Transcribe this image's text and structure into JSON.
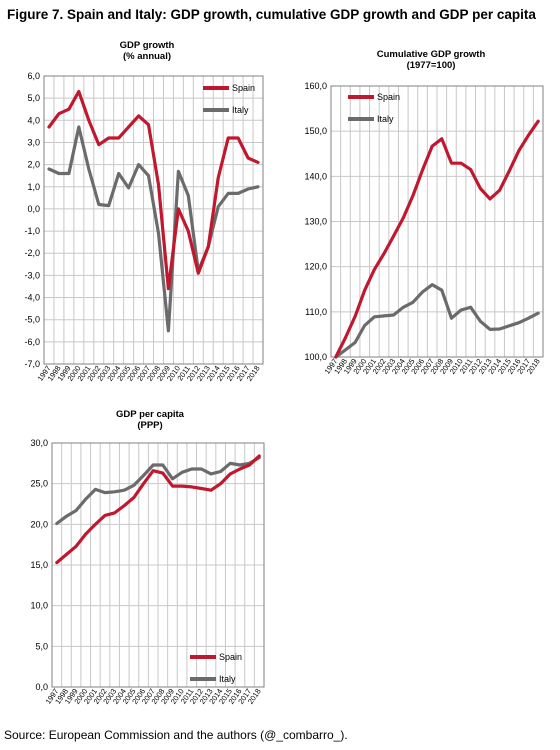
{
  "figure_title": "Figure 7. Spain and Italy: GDP growth, cumulative GDP growth and GDP per capita",
  "source": "Source: European Commission and the authors (@_combarro_).",
  "colors": {
    "spain": "#c0182f",
    "italy": "#6b6b6b"
  },
  "chart_data": [
    {
      "type": "line",
      "title": "GDP growth",
      "subtitle": "(% annual)",
      "categories": [
        "1997",
        "1998",
        "1999",
        "2000",
        "2001",
        "2002",
        "2003",
        "2004",
        "2005",
        "2006",
        "2007",
        "2008",
        "2009",
        "2010",
        "2011",
        "2012",
        "2013",
        "2014",
        "2015",
        "2016",
        "2017",
        "2018"
      ],
      "yticks": [
        "6,0",
        "5,0",
        "4,0",
        "3,0",
        "2,0",
        "1,0",
        "0,0",
        "-1,0",
        "-2,0",
        "-3,0",
        "-4,0",
        "-5,0",
        "-6,0",
        "-7,0"
      ],
      "ylim": [
        -7,
        6
      ],
      "grid": true,
      "legend_position": "top-right",
      "series": [
        {
          "name": "Spain",
          "color": "#c0182f",
          "values": [
            3.7,
            4.3,
            4.5,
            5.3,
            4.0,
            2.9,
            3.2,
            3.2,
            3.7,
            4.2,
            3.8,
            1.1,
            -3.6,
            0.0,
            -1.0,
            -2.9,
            -1.7,
            1.4,
            3.2,
            3.2,
            2.3,
            2.1
          ]
        },
        {
          "name": "Italy",
          "color": "#6b6b6b",
          "values": [
            1.8,
            1.6,
            1.6,
            3.7,
            1.8,
            0.2,
            0.15,
            1.6,
            0.95,
            2.0,
            1.5,
            -1.1,
            -5.5,
            1.7,
            0.6,
            -2.8,
            -1.7,
            0.1,
            0.7,
            0.7,
            0.9,
            1.0
          ]
        }
      ]
    },
    {
      "type": "line",
      "title": "Cumulative GDP growth",
      "subtitle": "(1977=100)",
      "categories": [
        "1997",
        "1998",
        "1999",
        "2000",
        "2001",
        "2002",
        "2003",
        "2004",
        "2005",
        "2006",
        "2007",
        "2008",
        "2009",
        "2010",
        "2011",
        "2012",
        "2013",
        "2014",
        "2015",
        "2016",
        "2017",
        "2018"
      ],
      "yticks": [
        "160,0",
        "150,0",
        "140,0",
        "130,0",
        "120,0",
        "110,0",
        "100,0"
      ],
      "ylim": [
        100,
        160
      ],
      "grid": true,
      "legend_position": "top-left",
      "series": [
        {
          "name": "Spain",
          "color": "#c0182f",
          "values": [
            100.0,
            104.3,
            109.0,
            114.8,
            119.4,
            122.9,
            126.8,
            130.8,
            135.7,
            141.4,
            146.7,
            148.3,
            142.9,
            142.9,
            141.5,
            137.3,
            135.0,
            136.9,
            141.2,
            145.7,
            149.1,
            152.2
          ]
        },
        {
          "name": "Italy",
          "color": "#6b6b6b",
          "values": [
            100.0,
            101.6,
            103.2,
            107.0,
            108.9,
            109.1,
            109.3,
            111.0,
            112.1,
            114.4,
            116.0,
            114.8,
            108.6,
            110.4,
            111.0,
            107.9,
            106.1,
            106.2,
            106.9,
            107.6,
            108.6,
            109.7
          ]
        }
      ]
    },
    {
      "type": "line",
      "title": "GDP per capita",
      "subtitle": "(PPP)",
      "categories": [
        "1997",
        "1998",
        "1999",
        "2000",
        "2001",
        "2002",
        "2003",
        "2004",
        "2005",
        "2006",
        "2007",
        "2008",
        "2009",
        "2010",
        "2011",
        "2012",
        "2013",
        "2014",
        "2015",
        "2016",
        "2017",
        "2018"
      ],
      "yticks": [
        "30,0",
        "25,0",
        "20,0",
        "15,0",
        "10,0",
        "5,0",
        "0,0"
      ],
      "ylim": [
        0,
        30
      ],
      "grid": true,
      "legend_position": "bottom-right",
      "series": [
        {
          "name": "Spain",
          "color": "#c0182f",
          "values": [
            15.3,
            16.3,
            17.3,
            18.8,
            20.0,
            21.1,
            21.4,
            22.3,
            23.3,
            25.0,
            26.6,
            26.3,
            24.7,
            24.7,
            24.6,
            24.4,
            24.2,
            25.0,
            26.2,
            26.8,
            27.3,
            28.4
          ]
        },
        {
          "name": "Italy",
          "color": "#6b6b6b",
          "values": [
            20.1,
            21.0,
            21.7,
            23.1,
            24.3,
            23.9,
            24.0,
            24.2,
            24.8,
            26.0,
            27.3,
            27.3,
            25.6,
            26.4,
            26.8,
            26.8,
            26.2,
            26.5,
            27.5,
            27.3,
            27.5,
            28.2
          ]
        }
      ]
    }
  ]
}
